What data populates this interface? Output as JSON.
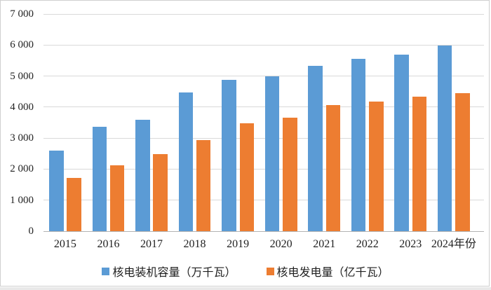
{
  "chart_data": {
    "type": "bar",
    "title": "",
    "categories": [
      "2015",
      "2016",
      "2017",
      "2018",
      "2019",
      "2020",
      "2021",
      "2022",
      "2023",
      "2024"
    ],
    "series": [
      {
        "name": "核电装机容量（万千瓦）",
        "color": "#5B9BD5",
        "values": [
          2608,
          3364,
          3582,
          4466,
          4874,
          4989,
          5326,
          5553,
          5691,
          5976
        ]
      },
      {
        "name": "核电发电量（亿千瓦）",
        "color": "#ED7D31",
        "values": [
          1714,
          2132,
          2483,
          2944,
          3487,
          3662,
          4071,
          4178,
          4334,
          4447
        ]
      }
    ],
    "ylim": [
      0,
      7000
    ],
    "ytick_step": 1000,
    "ytick_labels": [
      "0",
      "1 000",
      "2 000",
      "3 000",
      "4 000",
      "5 000",
      "6 000",
      "7 000"
    ],
    "xaxis_unit": "年份",
    "grid": true,
    "legend_position": "bottom",
    "colors": {
      "gridline": "#d9d9d9",
      "axis_line": "#b3b3b3",
      "text": "#1f1f1f",
      "frame_border": "#cfcfcf"
    }
  }
}
